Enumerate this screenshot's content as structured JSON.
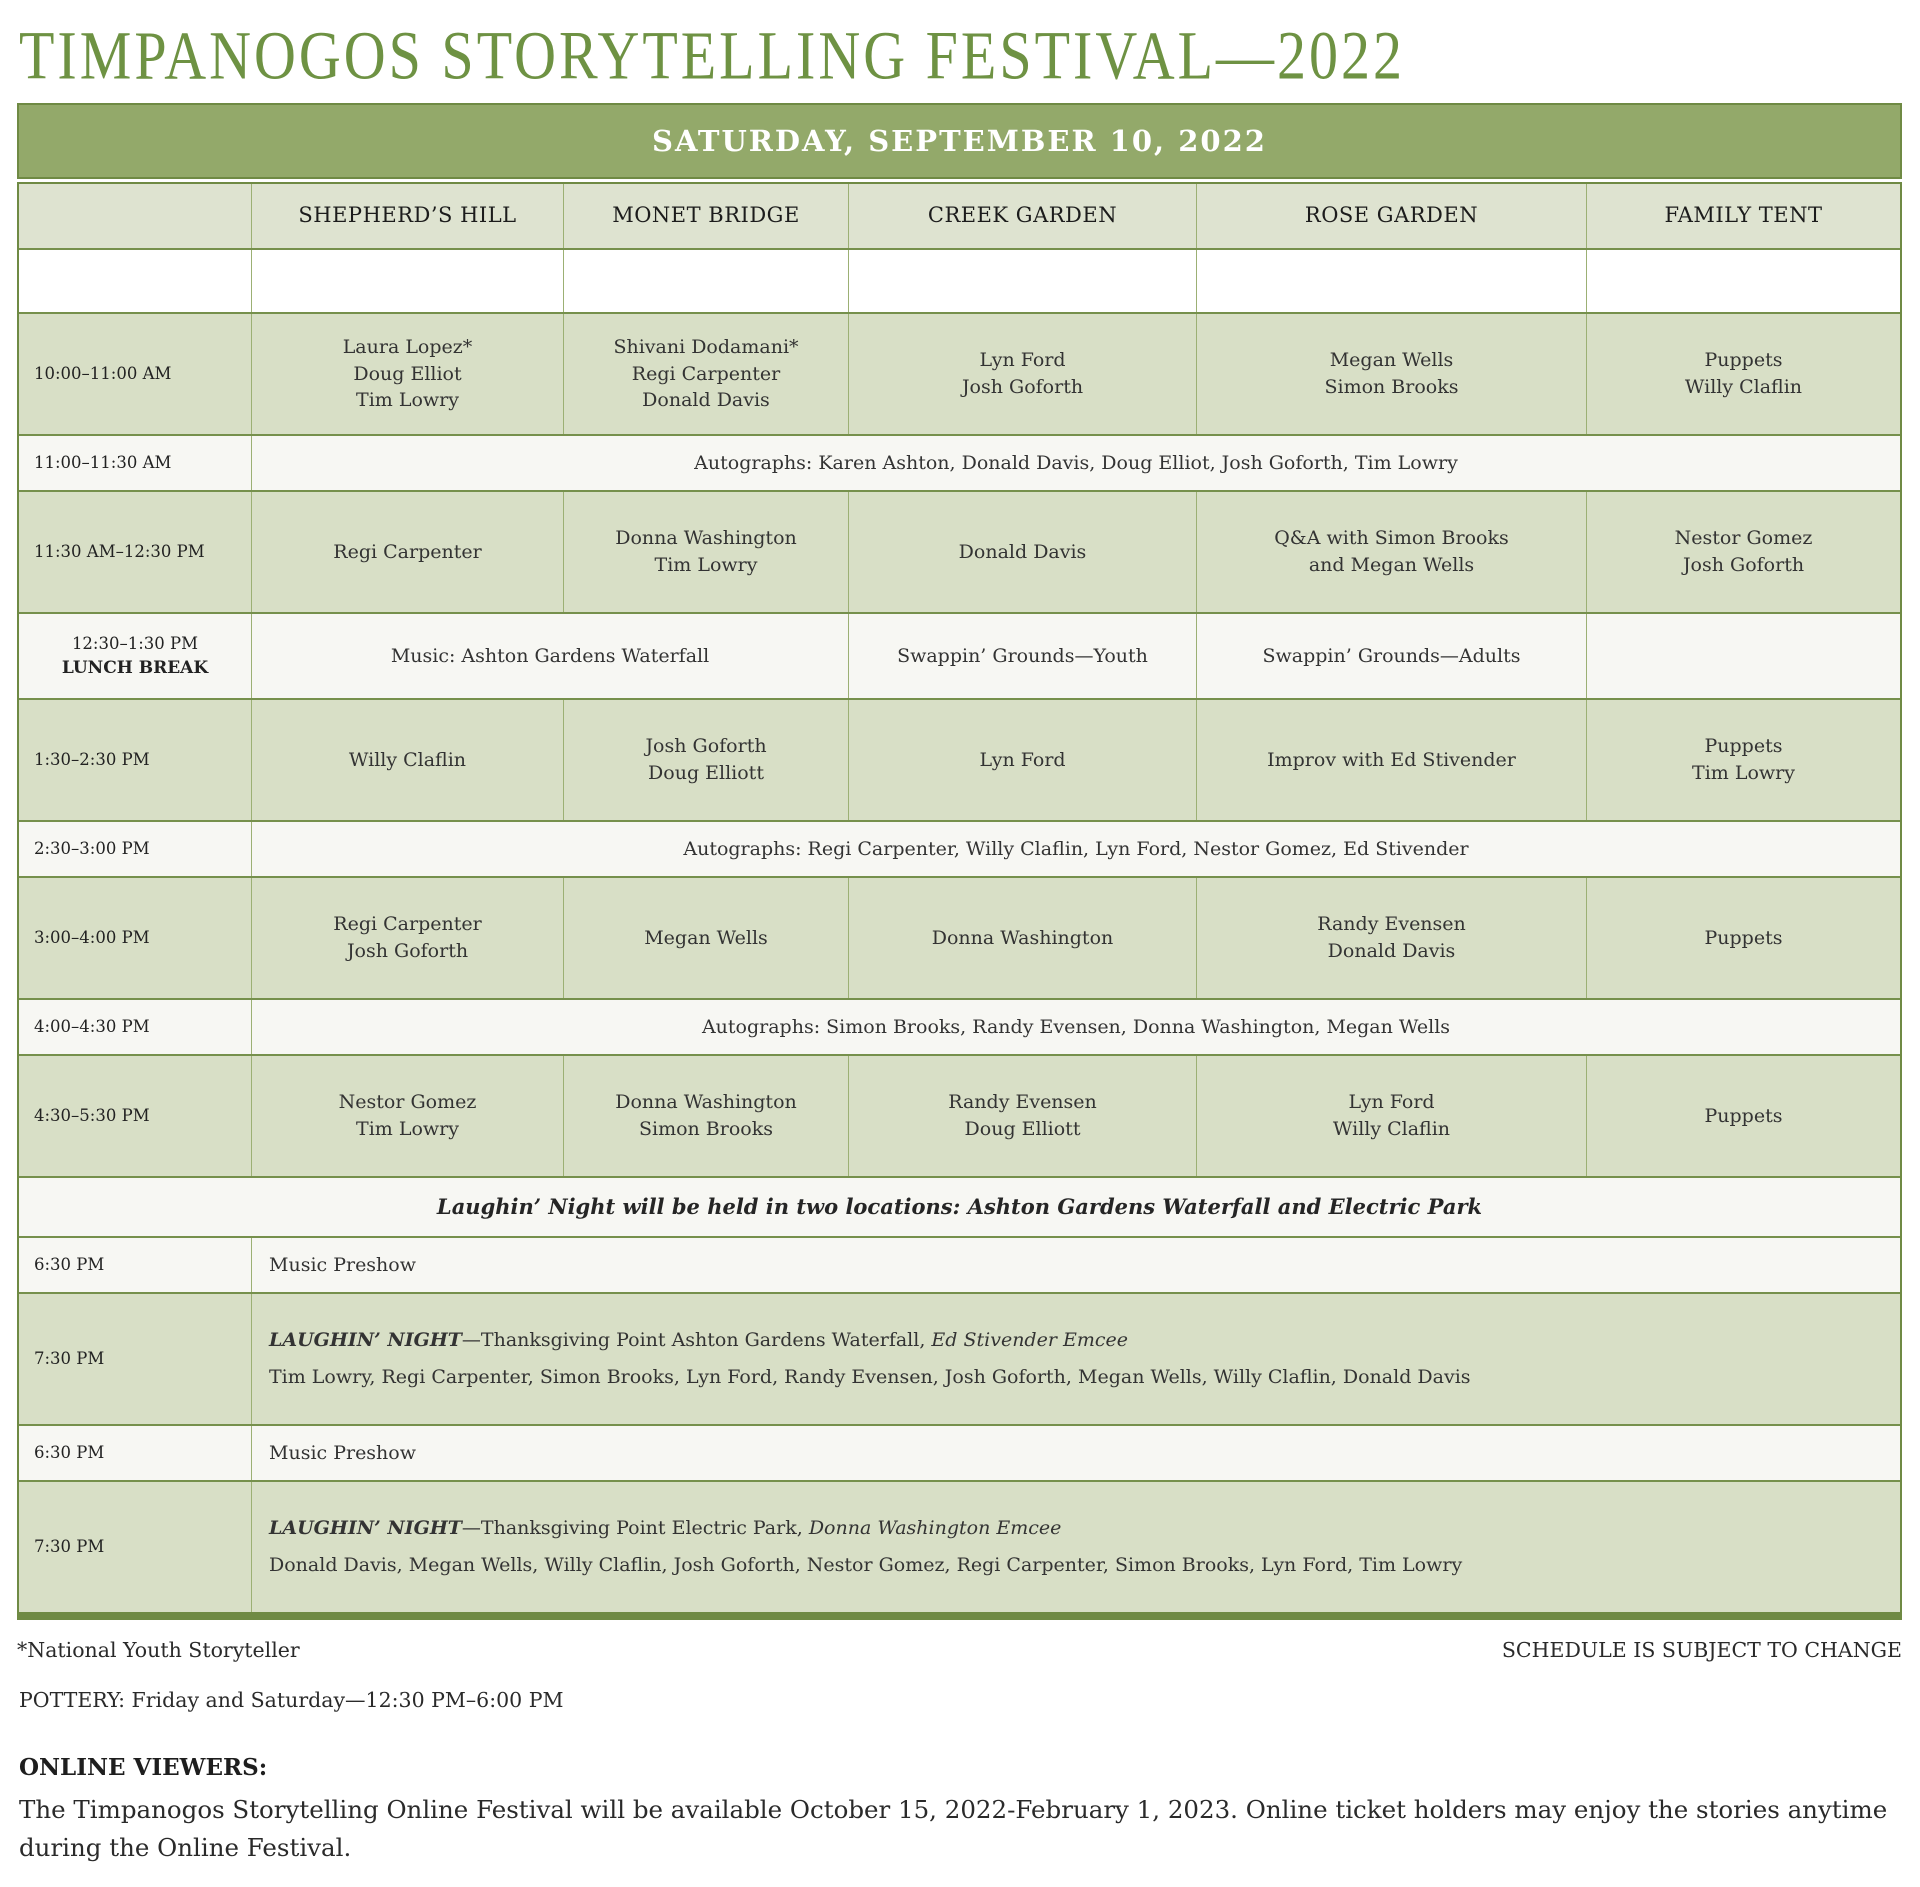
{
  "title": "TIMPANOGOS STORYTELLING FESTIVAL—2022",
  "banner": "SATURDAY, SEPTEMBER 10, 2022",
  "columns": {
    "shepherd": "SHEPHERD’S HILL",
    "monet": "MONET BRIDGE",
    "creek": "CREEK GARDEN",
    "rose": "ROSE GARDEN",
    "family": "FAMILY TENT"
  },
  "schedule": {
    "r1000": {
      "time": "10:00–11:00 AM",
      "shepherd": [
        "Laura Lopez*",
        "Doug Elliot",
        "Tim Lowry"
      ],
      "monet": [
        "Shivani Dodamani*",
        "Regi Carpenter",
        "Donald Davis"
      ],
      "creek": [
        "Lyn Ford",
        "Josh Goforth"
      ],
      "rose": [
        "Megan Wells",
        "Simon Brooks"
      ],
      "family": [
        "Puppets",
        "Willy Claflin"
      ]
    },
    "r1100": {
      "time": "11:00–11:30 AM",
      "text": "Autographs: Karen Ashton, Donald Davis, Doug Elliot, Josh Goforth, Tim Lowry"
    },
    "r1130": {
      "time": "11:30 AM–12:30 PM",
      "shepherd": [
        "Regi Carpenter"
      ],
      "monet": [
        "Donna Washington",
        "Tim Lowry"
      ],
      "creek": [
        "Donald Davis"
      ],
      "rose": [
        "Q&A with Simon Brooks",
        "and Megan Wells"
      ],
      "family": [
        "Nestor Gomez",
        "Josh Goforth"
      ]
    },
    "r1230": {
      "time": "12:30–1:30 PM",
      "time2": "LUNCH BREAK",
      "music": "Music: Ashton Gardens Waterfall",
      "creek": "Swappin’ Grounds—Youth",
      "rose": "Swappin’ Grounds—Adults",
      "family": ""
    },
    "r130": {
      "time": "1:30–2:30 PM",
      "shepherd": [
        "Willy Claflin"
      ],
      "monet": [
        "Josh Goforth",
        "Doug Elliott"
      ],
      "creek": [
        "Lyn Ford"
      ],
      "rose": [
        "Improv with Ed Stivender"
      ],
      "family": [
        "Puppets",
        "Tim Lowry"
      ]
    },
    "r230": {
      "time": "2:30–3:00 PM",
      "text": "Autographs: Regi Carpenter, Willy Claflin, Lyn Ford, Nestor Gomez, Ed Stivender"
    },
    "r300": {
      "time": "3:00–4:00 PM",
      "shepherd": [
        "Regi Carpenter",
        "Josh Goforth"
      ],
      "monet": [
        "Megan Wells"
      ],
      "creek": [
        "Donna Washington"
      ],
      "rose": [
        "Randy Evensen",
        "Donald Davis"
      ],
      "family": [
        "Puppets"
      ]
    },
    "r400": {
      "time": "4:00–4:30 PM",
      "text": "Autographs: Simon Brooks, Randy Evensen, Donna Washington, Megan Wells"
    },
    "r430": {
      "time": "4:30–5:30 PM",
      "shepherd": [
        "Nestor Gomez",
        "Tim Lowry"
      ],
      "monet": [
        "Donna Washington",
        "Simon Brooks"
      ],
      "creek": [
        "Randy Evensen",
        "Doug Elliott"
      ],
      "rose": [
        "Lyn Ford",
        "Willy Claflin"
      ],
      "family": [
        "Puppets"
      ]
    },
    "notice": "Laughin’ Night will be held in two locations: Ashton Gardens Waterfall and Electric Park",
    "r630a": {
      "time": "6:30 PM",
      "text": "Music Preshow"
    },
    "r730a": {
      "time": "7:30 PM",
      "label": "LAUGHIN’ NIGHT",
      "desc": "—Thanksgiving Point Ashton Gardens Waterfall, ",
      "emcee": "Ed Stivender Emcee",
      "performers": "Tim Lowry, Regi Carpenter, Simon Brooks, Lyn Ford, Randy Evensen, Josh Goforth, Megan Wells, Willy Claflin, Donald Davis"
    },
    "r630b": {
      "time": "6:30 PM",
      "text": "Music Preshow"
    },
    "r730b": {
      "time": "7:30 PM",
      "label": "LAUGHIN’ NIGHT",
      "desc": "—Thanksgiving Point Electric Park, ",
      "emcee": "Donna Washington Emcee",
      "performers": "Donald Davis, Megan Wells, Willy Claflin, Josh Goforth, Nestor Gomez, Regi Carpenter, Simon Brooks, Lyn Ford, Tim Lowry"
    }
  },
  "footer": {
    "footnote": "*National Youth Storyteller",
    "subject_to_change": "SCHEDULE IS SUBJECT TO CHANGE",
    "pottery": "POTTERY: Friday and Saturday—12:30 PM–6:00 PM",
    "online_heading": "ONLINE VIEWERS:",
    "online_body": "The Timpanogos Storytelling Online Festival will be available October 15, 2022-February 1, 2023. Online ticket holders may enjoy the stories anytime during the Online Festival."
  },
  "colors": {
    "title_green": "#6e9243",
    "banner_fill": "#93a96a",
    "border_green": "#6f8a44",
    "header_row_bg": "#dee3d0",
    "green_cell_bg": "#d8dfc6",
    "offwhite_row_bg": "#f7f7f3"
  }
}
